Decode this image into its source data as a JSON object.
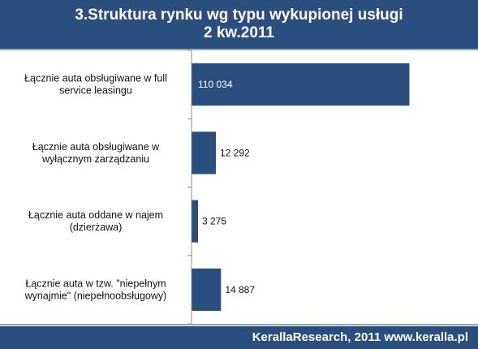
{
  "header": {
    "title_line1": "3.Struktura rynku wg typu wykupionej usługi",
    "title_line2": "2 kw.2011"
  },
  "footer": {
    "credit": "KerallaResearch, 2011 www.keralla.pl"
  },
  "colors": {
    "header_bg": "#2a4f7f",
    "bar": "#2a4f7f",
    "axis": "#8c8c8c"
  },
  "chart_data": {
    "type": "bar",
    "orientation": "horizontal",
    "categories": [
      [
        "Łącznie auta obsługiwane w full",
        "service leasingu"
      ],
      [
        "Łącznie auta obsługiwane w",
        "wyłącznym zarządzaniu"
      ],
      [
        "Łącznie auta  oddane w najem",
        "(dzierżawa)"
      ],
      [
        "Łącznie auta w tzw. \"niepełnym",
        "wynajmie\" (niepełnoobsługowy)"
      ]
    ],
    "values": [
      110034,
      12292,
      3275,
      14887
    ],
    "value_labels": [
      "110 034",
      "12 292",
      "3 275",
      "14 887"
    ],
    "xlim": [
      0,
      150000
    ],
    "grid": false,
    "legend": "none"
  }
}
